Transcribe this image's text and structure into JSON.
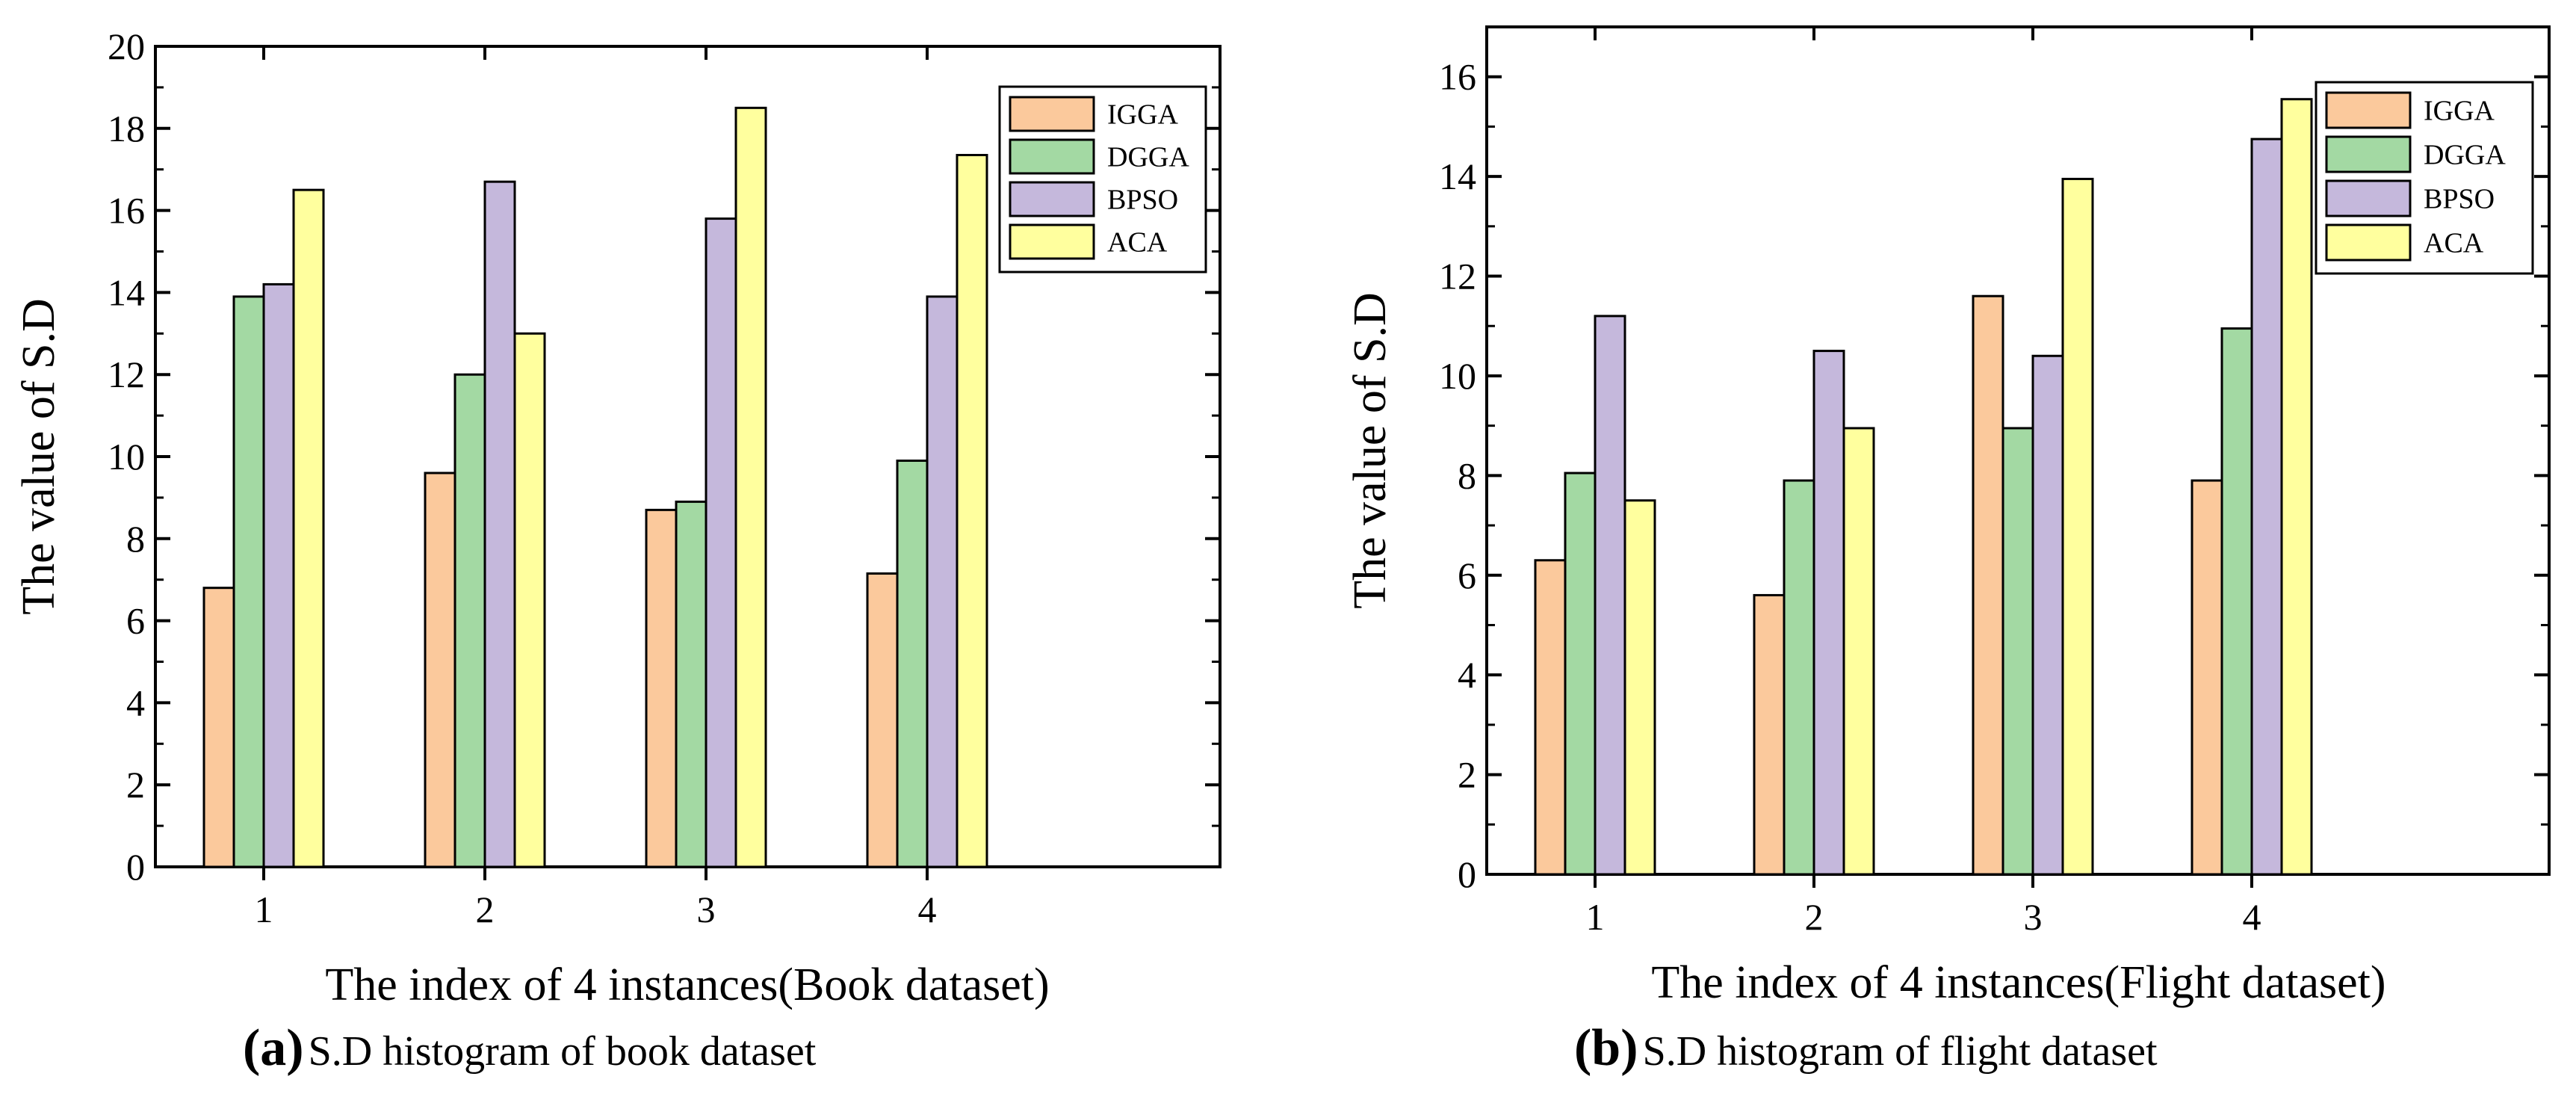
{
  "colors": {
    "IGGA": "#fbc99c",
    "DGGA": "#a3d9a3",
    "BPSO": "#c5b8dc",
    "ACA": "#ffff9e",
    "stroke": "#000000"
  },
  "chart_data": [
    {
      "type": "bar",
      "title": "",
      "xlabel": "The index of 4 instances(Book dataset)",
      "ylabel": "The value of S.D",
      "ylim": [
        0,
        20
      ],
      "yticks": [
        "0",
        "2",
        "4",
        "6",
        "8",
        "10",
        "12",
        "14",
        "16",
        "18",
        "20"
      ],
      "categories": [
        "1",
        "2",
        "3",
        "4"
      ],
      "legend_position": "top-right",
      "series": [
        {
          "name": "IGGA",
          "values": [
            6.8,
            9.6,
            8.7,
            7.15
          ]
        },
        {
          "name": "DGGA",
          "values": [
            13.9,
            12.0,
            8.9,
            9.9
          ]
        },
        {
          "name": "BPSO",
          "values": [
            14.2,
            16.7,
            15.8,
            13.9
          ]
        },
        {
          "name": "ACA",
          "values": [
            16.5,
            13.0,
            18.5,
            17.35
          ]
        }
      ],
      "caption": {
        "tag": "(a)",
        "text": "S.D histogram of book dataset"
      }
    },
    {
      "type": "bar",
      "title": "",
      "xlabel": "The index of 4 instances(Flight dataset)",
      "ylabel": "The value of S.D",
      "ylim": [
        0,
        17
      ],
      "yticks": [
        "0",
        "2",
        "4",
        "6",
        "8",
        "10",
        "12",
        "14",
        "16"
      ],
      "categories": [
        "1",
        "2",
        "3",
        "4"
      ],
      "legend_position": "top-right",
      "series": [
        {
          "name": "IGGA",
          "values": [
            6.3,
            5.6,
            11.6,
            7.9
          ]
        },
        {
          "name": "DGGA",
          "values": [
            8.05,
            7.9,
            8.95,
            10.95
          ]
        },
        {
          "name": "BPSO",
          "values": [
            11.2,
            10.5,
            10.4,
            14.75
          ]
        },
        {
          "name": "ACA",
          "values": [
            7.5,
            8.95,
            13.95,
            15.55
          ]
        }
      ],
      "caption": {
        "tag": "(b)",
        "text": "S.D histogram of flight dataset"
      }
    }
  ]
}
